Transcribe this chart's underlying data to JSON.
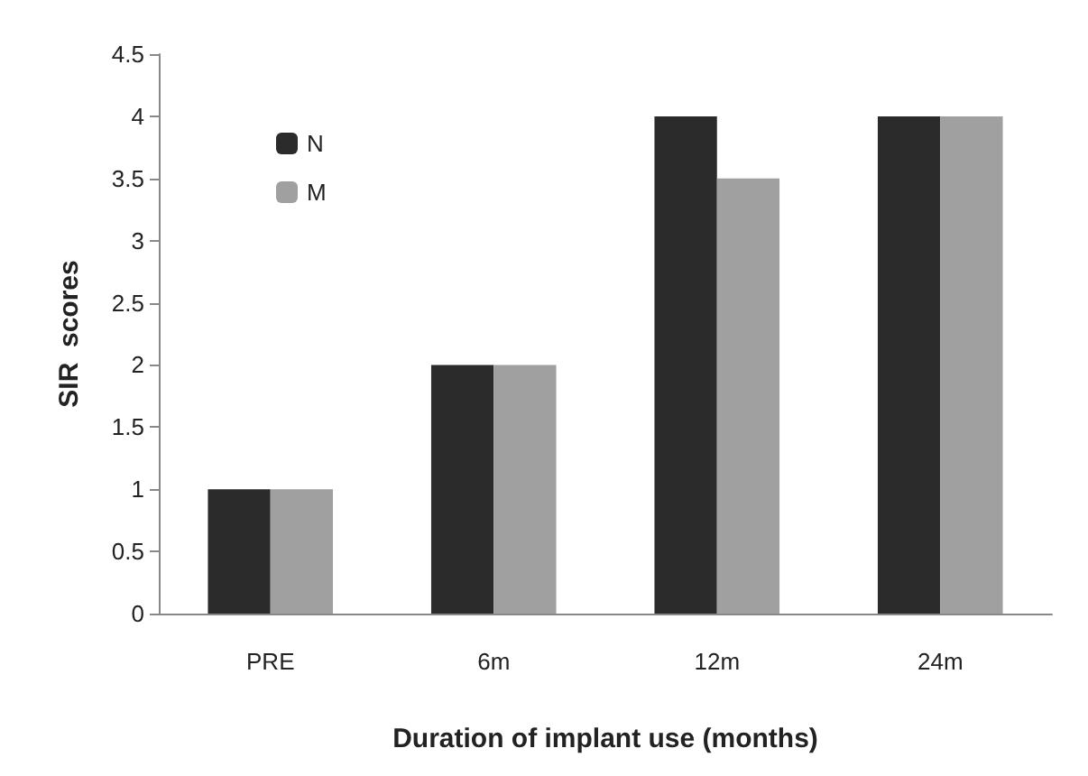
{
  "chart_data": {
    "type": "bar",
    "xlabel": "Duration of implant use (months)",
    "ylabel": "SIR  scores",
    "categories": [
      "PRE",
      "6m",
      "12m",
      "24m"
    ],
    "series": [
      {
        "name": "N",
        "color": "#2b2b2b",
        "values": [
          1,
          2,
          4,
          4
        ]
      },
      {
        "name": "M",
        "color": "#a0a0a0",
        "values": [
          1,
          2,
          3.5,
          4
        ]
      }
    ],
    "ylim": [
      0,
      4.5
    ],
    "yticks": [
      0,
      0.5,
      1,
      1.5,
      2,
      2.5,
      3,
      3.5,
      4,
      4.5
    ],
    "grid": false,
    "legend": "top left"
  }
}
